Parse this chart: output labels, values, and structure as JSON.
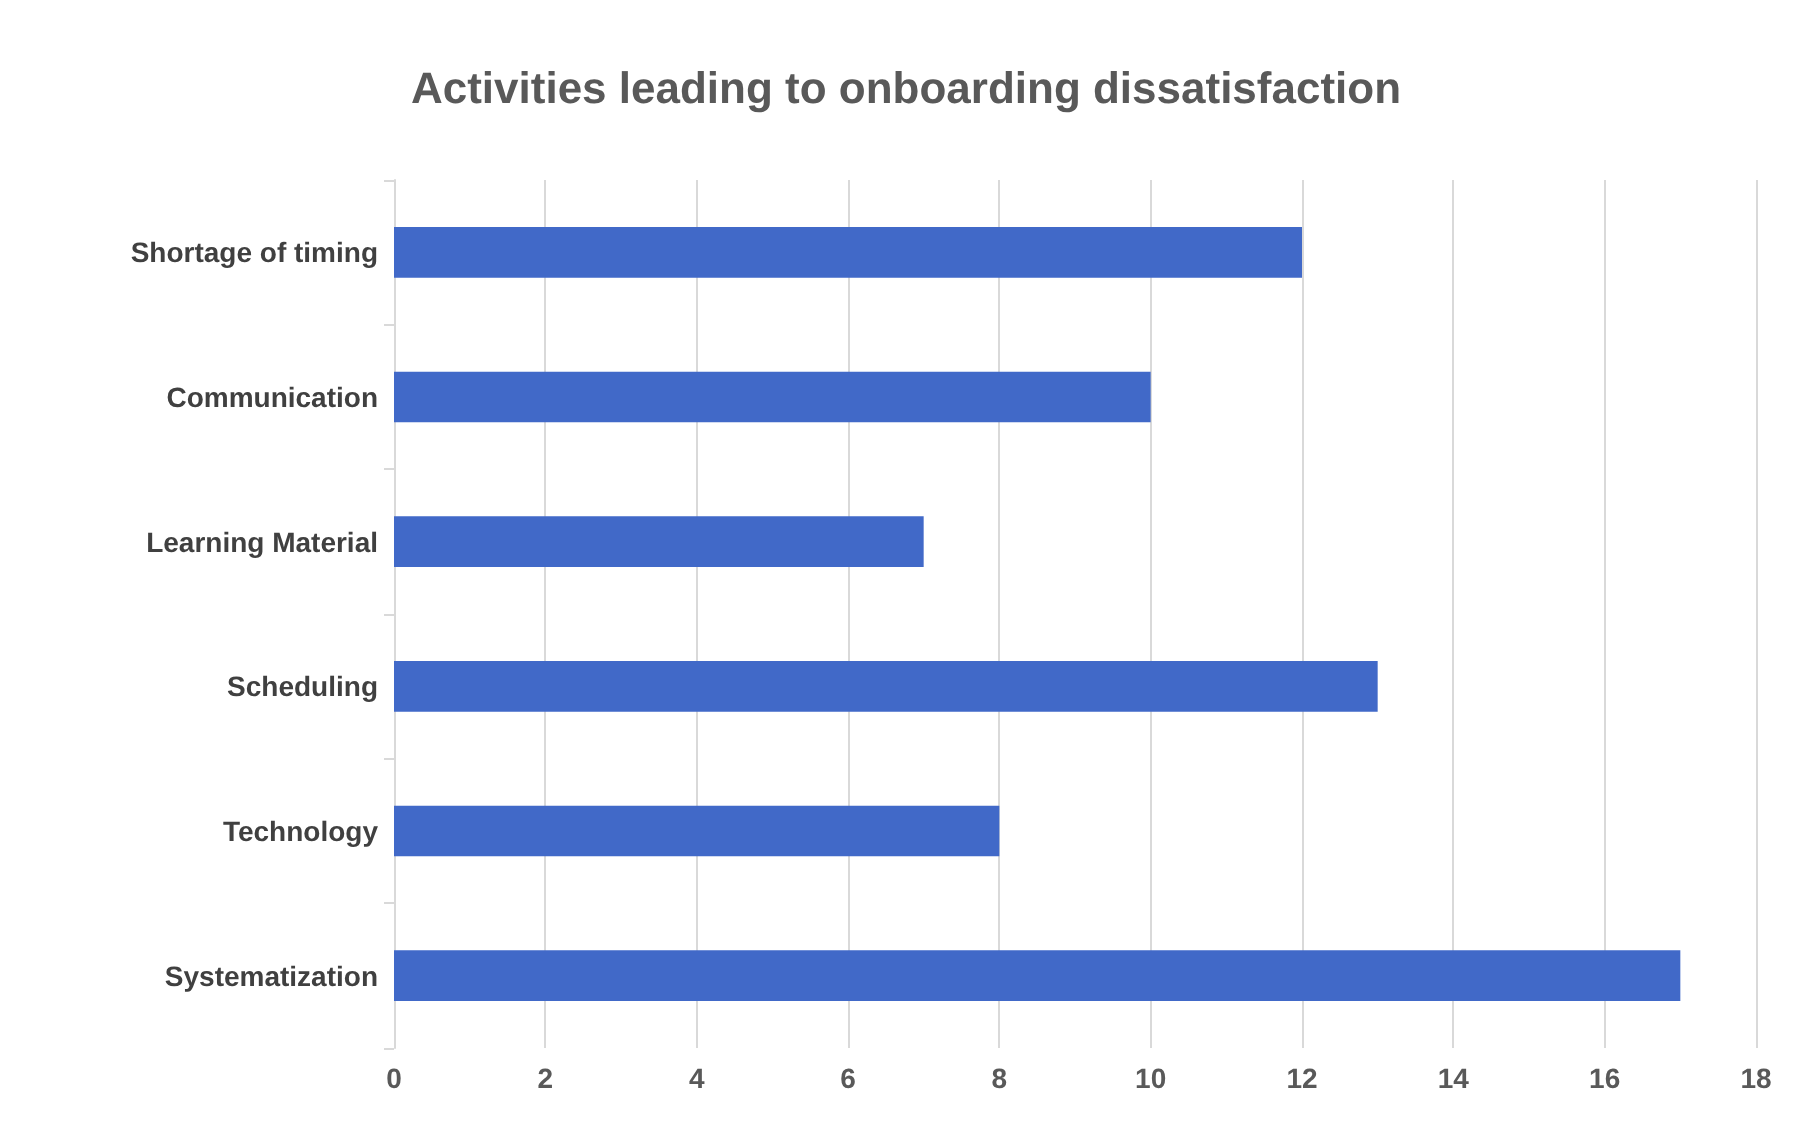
{
  "chart_data": {
    "type": "bar",
    "orientation": "horizontal",
    "title": "Activities leading to onboarding dissatisfaction",
    "categories": [
      "Shortage of timing",
      "Communication",
      "Learning Material",
      "Scheduling",
      "Technology",
      "Systematization"
    ],
    "values": [
      12,
      10,
      7,
      13,
      8,
      17
    ],
    "color": "#4169c8",
    "xlim": [
      0,
      18
    ],
    "xticks": [
      0,
      2,
      4,
      6,
      8,
      10,
      12,
      14,
      16,
      18
    ],
    "grid": "x"
  }
}
